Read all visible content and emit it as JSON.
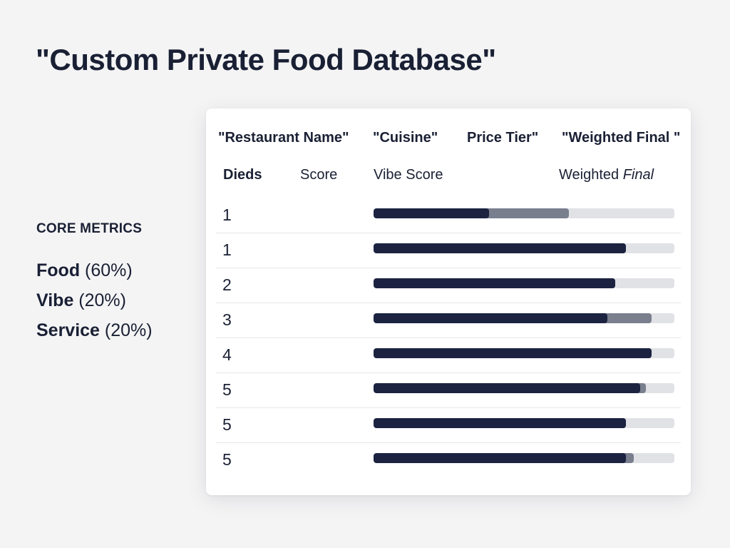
{
  "page": {
    "title": "\"Custom Private Food Database\""
  },
  "metrics": {
    "heading": "CORE METRICS",
    "items": [
      {
        "name": "Food",
        "weight": "(60%)"
      },
      {
        "name": "Vibe",
        "weight": "(20%)"
      },
      {
        "name": "Service",
        "weight": "(20%)"
      }
    ]
  },
  "table": {
    "headers": {
      "restaurant_name": "\"Restaurant Name\"",
      "cuisine": "\"Cuisine\"",
      "price_tier": "Price Tier\"",
      "weighted_final": "\"Weighted Final \""
    },
    "sub_headers": {
      "dieds": "Dieds",
      "score": "Score",
      "vibe_score": "Vibe Score",
      "weighted_final_a": "Weighted ",
      "weighted_final_b": "Final"
    },
    "rows": [
      {
        "rank": "1",
        "primary": 0.385,
        "secondary": 0.65
      },
      {
        "rank": "1",
        "primary": 0.84,
        "secondary": 0.84
      },
      {
        "rank": "2",
        "primary": 0.803,
        "secondary": 0.803
      },
      {
        "rank": "3",
        "primary": 0.777,
        "secondary": 0.924
      },
      {
        "rank": "4",
        "primary": 0.924,
        "secondary": 0.924
      },
      {
        "rank": "5",
        "primary": 0.887,
        "secondary": 0.905
      },
      {
        "rank": "5",
        "primary": 0.84,
        "secondary": 0.84
      },
      {
        "rank": "5",
        "primary": 0.84,
        "secondary": 0.865
      }
    ],
    "colors": {
      "primary_bar": "#1b2340",
      "secondary_bar": "#7a7f8e",
      "track": "#e1e2e6"
    }
  }
}
